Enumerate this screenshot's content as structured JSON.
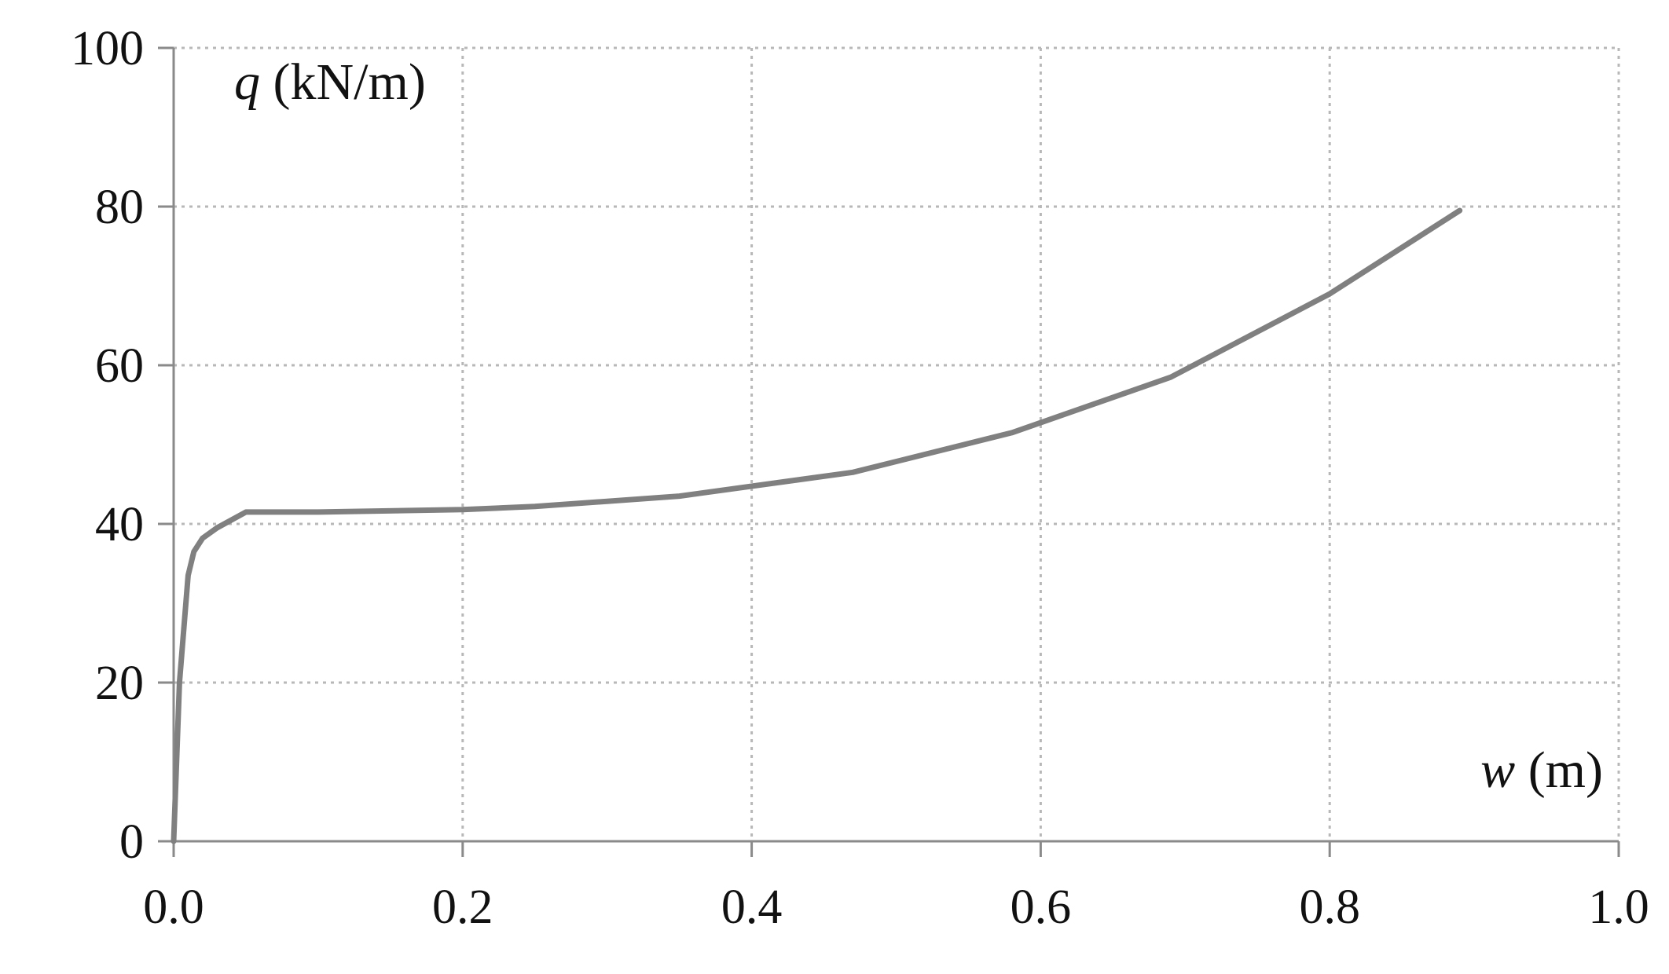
{
  "chart_data": {
    "type": "line",
    "xlabel_var": "w",
    "xlabel_unit": " (m)",
    "ylabel_var": "q",
    "ylabel_unit": " (kN/m)",
    "xlim": [
      0,
      1.0
    ],
    "ylim": [
      0,
      100
    ],
    "x_ticks": [
      0.0,
      0.2,
      0.4,
      0.6,
      0.8,
      1.0
    ],
    "x_tick_labels": [
      "0.0",
      "0.2",
      "0.4",
      "0.6",
      "0.8",
      "1.0"
    ],
    "y_ticks": [
      0,
      20,
      40,
      60,
      80,
      100
    ],
    "y_tick_labels": [
      "0",
      "20",
      "40",
      "60",
      "80",
      "100"
    ],
    "grid": true,
    "line_color": "#808080",
    "grid_color": "#b8b8b8",
    "axis_color": "#8a8a8a",
    "series": [
      {
        "x": [
          0.0,
          0.004,
          0.01,
          0.014,
          0.02,
          0.03,
          0.05,
          0.1,
          0.2,
          0.25,
          0.35,
          0.47,
          0.58,
          0.69,
          0.8,
          0.89
        ],
        "y": [
          0.0,
          20.0,
          33.5,
          36.5,
          38.2,
          39.5,
          41.5,
          41.5,
          41.8,
          42.2,
          43.5,
          46.5,
          51.5,
          58.5,
          69.0,
          79.5
        ]
      }
    ]
  }
}
